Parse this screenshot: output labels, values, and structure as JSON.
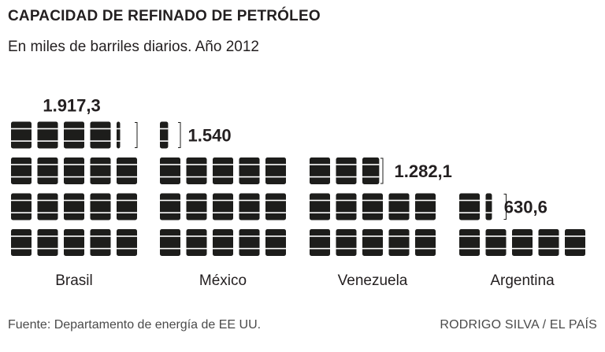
{
  "chart_data": {
    "type": "bar",
    "title": "CAPACIDAD DE REFINADO DE PETRÓLEO",
    "subtitle": "En miles de barriles diarios. Año 2012",
    "unit": "miles de barriles diarios",
    "barrel_unit": 100,
    "categories": [
      "Brasil",
      "México",
      "Venezuela",
      "Argentina"
    ],
    "values": [
      1917.3,
      1540,
      1282.1,
      630.6
    ],
    "value_labels": [
      "1.917,3",
      "1.540",
      "1.282,1",
      "630,6"
    ],
    "xlabel": "",
    "ylabel": ""
  },
  "footer": {
    "source": "Fuente:  Departamento de energía de EE UU.",
    "credit": "RODRIGO SILVA / EL PAÍS"
  },
  "colors": {
    "barrel": "#1d1d1b",
    "text": "#231f20",
    "footer": "#4a4a4a",
    "background": "#ffffff"
  }
}
